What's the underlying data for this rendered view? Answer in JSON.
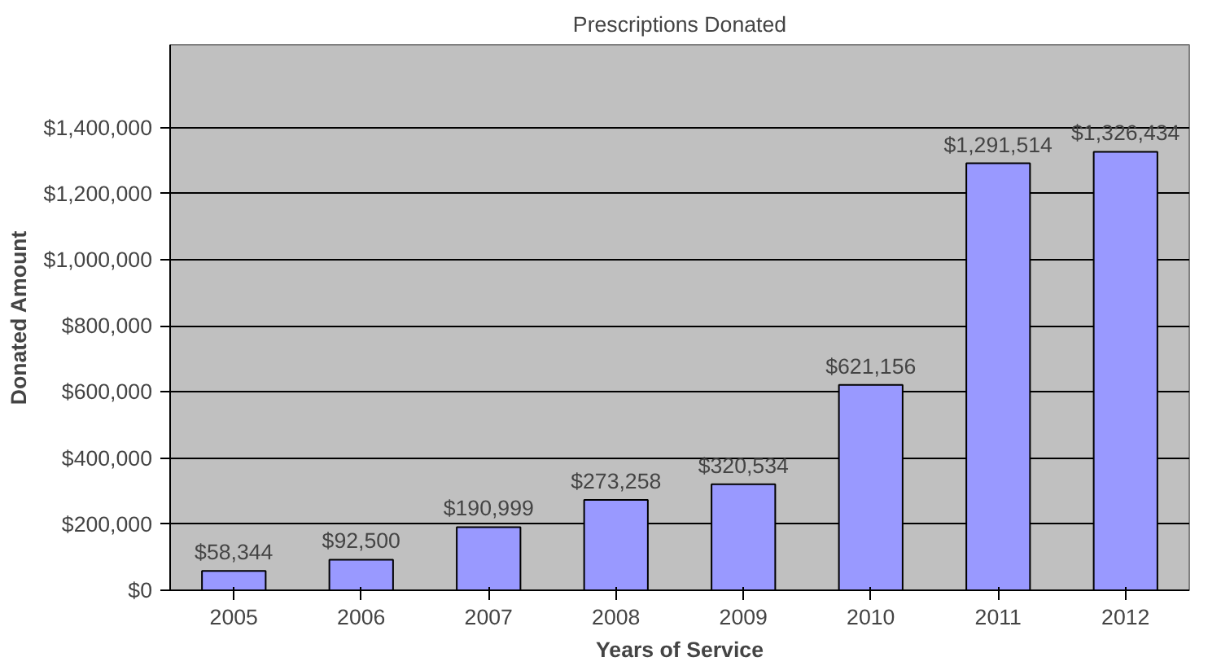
{
  "chart_data": {
    "type": "bar",
    "title": "Prescriptions Donated",
    "xlabel": "Years of Service",
    "ylabel": "Donated Amount",
    "categories": [
      "2005",
      "2006",
      "2007",
      "2008",
      "2009",
      "2010",
      "2011",
      "2012"
    ],
    "values": [
      58344,
      92500,
      190999,
      273258,
      320534,
      621156,
      1291514,
      1326434
    ],
    "value_labels": [
      "$58,344",
      "$92,500",
      "$190,999",
      "$273,258",
      "$320,534",
      "$621,156",
      "$1,291,514",
      "$1,326,434"
    ],
    "color": "#9999ff",
    "ylim": [
      0,
      1650000
    ],
    "yticks": [
      {
        "value": 0,
        "label": "$0"
      },
      {
        "value": 200000,
        "label": "$200,000"
      },
      {
        "value": 400000,
        "label": "$400,000"
      },
      {
        "value": 600000,
        "label": "$600,000"
      },
      {
        "value": 800000,
        "label": "$800,000"
      },
      {
        "value": 1000000,
        "label": "$1,000,000"
      },
      {
        "value": 1200000,
        "label": "$1,200,000"
      },
      {
        "value": 1400000,
        "label": "$1,400,000"
      }
    ],
    "grid": "y"
  }
}
